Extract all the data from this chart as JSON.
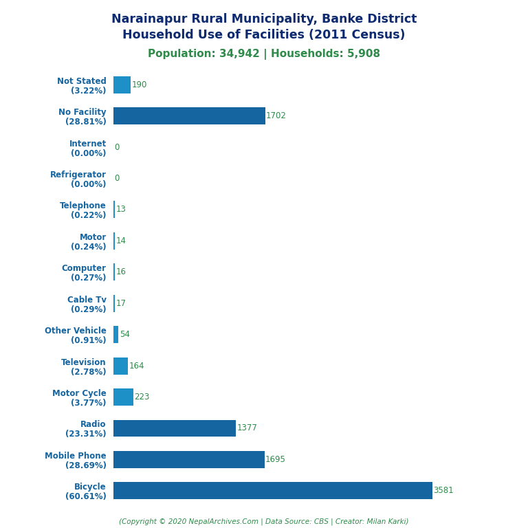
{
  "title_line1": "Narainapur Rural Municipality, Banke District",
  "title_line2": "Household Use of Facilities (2011 Census)",
  "subtitle": "Population: 34,942 | Households: 5,908",
  "footer": "(Copyright © 2020 NepalArchives.Com | Data Source: CBS | Creator: Milan Karki)",
  "categories": [
    "Not Stated\n(3.22%)",
    "No Facility\n(28.81%)",
    "Internet\n(0.00%)",
    "Refrigerator\n(0.00%)",
    "Telephone\n(0.22%)",
    "Motor\n(0.24%)",
    "Computer\n(0.27%)",
    "Cable Tv\n(0.29%)",
    "Other Vehicle\n(0.91%)",
    "Television\n(2.78%)",
    "Motor Cycle\n(3.77%)",
    "Radio\n(23.31%)",
    "Mobile Phone\n(28.69%)",
    "Bicycle\n(60.61%)"
  ],
  "values": [
    190,
    1702,
    0,
    0,
    13,
    14,
    16,
    17,
    54,
    164,
    223,
    1377,
    1695,
    3581
  ],
  "bar_color": "#1e90c8",
  "bar_color_dark": "#1565a0",
  "title_color": "#0d2a6e",
  "subtitle_color": "#2e8b4a",
  "value_color": "#2e8b4a",
  "footer_color": "#2e8b4a",
  "label_color": "#1565a0",
  "background_color": "#ffffff",
  "figsize": [
    7.68,
    7.68
  ],
  "dpi": 100
}
